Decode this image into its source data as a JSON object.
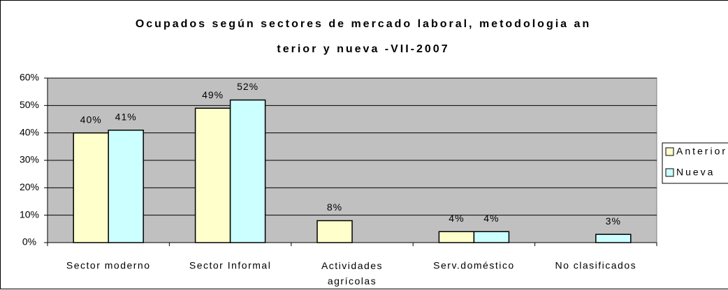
{
  "chart_data": {
    "type": "bar",
    "title": [
      "Ocupados según sectores de mercado laboral, metodologia an",
      "terior y nueva -VII-2007"
    ],
    "categories": [
      "Sector moderno",
      "Sector Informal",
      "Actividades agrícolas",
      "Serv.doméstico",
      "No clasificados"
    ],
    "series": [
      {
        "name": "Anterior",
        "color": "#FFFFCC",
        "values": [
          40,
          49,
          8,
          4,
          null
        ],
        "value_labels": [
          "40%",
          "49%",
          "8%",
          "4%",
          null
        ]
      },
      {
        "name": "Nueva",
        "color": "#CCFFFF",
        "values": [
          41,
          52,
          null,
          4,
          3
        ],
        "value_labels": [
          "41%",
          "52%",
          null,
          "4%",
          "3%"
        ]
      }
    ],
    "ylim": [
      0,
      60
    ],
    "yticks": [
      {
        "value": 0,
        "label": "0%"
      },
      {
        "value": 10,
        "label": "10%"
      },
      {
        "value": 20,
        "label": "20%"
      },
      {
        "value": 30,
        "label": "30%"
      },
      {
        "value": 40,
        "label": "40%"
      },
      {
        "value": 50,
        "label": "50%"
      },
      {
        "value": 60,
        "label": "60%"
      }
    ],
    "grid": true,
    "legend": "right",
    "plot_background": "#C0C0C0"
  }
}
